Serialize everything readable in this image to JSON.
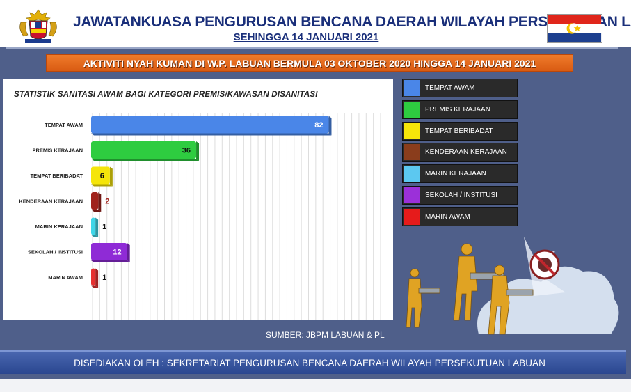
{
  "header": {
    "title": "JAWATANKUASA PENGURUSAN BENCANA DAERAH WILAYAH PERSEKUTUAN  LABUAN",
    "subtitle": "SEHINGGA 14 JANUARI 2021"
  },
  "banner": {
    "text": "AKTIVITI NYAH KUMAN DI W.P. LABUAN BERMULA 03 OKTOBER 2020 HINGGA 14 JANUARI 2021"
  },
  "chart_data": {
    "type": "bar",
    "orientation": "horizontal",
    "title": "STATISTIK SANITASI AWAM BAGI KATEGORI PREMIS/KAWASAN DISANITASI",
    "categories": [
      "TEMPAT AWAM",
      "PREMIS KERAJAAN",
      "TEMPAT BERIBADAT",
      "KENDERAAN KERAJAAN",
      "MARIN KERAJAAN",
      "SEKOLAH / INSTITUSI",
      "MARIN AWAM"
    ],
    "values": [
      82,
      36,
      6,
      2,
      1,
      12,
      1
    ],
    "colors": [
      "#4a86e8",
      "#2ecc40",
      "#f5e50a",
      "#a0221c",
      "#3fd6e8",
      "#8f2bd6",
      "#e63030"
    ],
    "xlim": [
      0,
      100
    ],
    "xticks": [
      0,
      25,
      50,
      75,
      100
    ],
    "xtick_labels": [
      "0",
      "25",
      "50",
      "75",
      "100"
    ],
    "grid": true,
    "legend_position": "right"
  },
  "legend": [
    {
      "label": "TEMPAT AWAM",
      "color": "#4a86e8"
    },
    {
      "label": "PREMIS KERAJAAN",
      "color": "#2ecc40"
    },
    {
      "label": "TEMPAT BERIBADAT",
      "color": "#f5e50a"
    },
    {
      "label": "KENDERAAN KERAJAAN",
      "color": "#8a3d1c"
    },
    {
      "label": "MARIN KERAJAAN",
      "color": "#5cc8f0"
    },
    {
      "label": "SEKOLAH / INSTITUSI",
      "color": "#9b30d9"
    },
    {
      "label": "MARIN AWAM",
      "color": "#e61b1b"
    }
  ],
  "source": "SUMBER: JBPM LABUAN & PL",
  "footer": "DISEDIAKAN OLEH : SEKRETARIAT PENGURUSAN BENCANA DAERAH WILAYAH PERSEKUTUAN LABUAN",
  "icons": {
    "crest": "malaysia-coat-of-arms-icon",
    "flag": "labuan-flag-icon",
    "illustration": "disinfection-workers-illustration"
  }
}
